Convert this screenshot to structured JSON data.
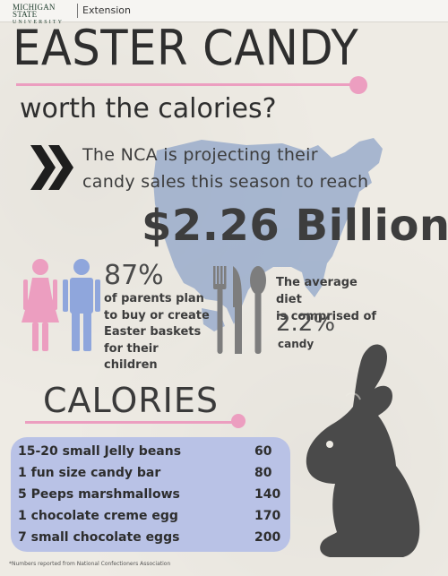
{
  "header": {
    "logo_line1": "MICHIGAN STATE",
    "logo_line2": "UNIVERSITY",
    "section": "Extension"
  },
  "title": "EASTER CANDY",
  "subtitle": "worth the calories?",
  "nca": {
    "line1": "The NCA is projecting their",
    "line2": "candy sales this season to reach",
    "amount": "$2.26 Billion"
  },
  "parents": {
    "percent": "87%",
    "text_lines": [
      "of parents plan",
      "to buy or create",
      "Easter baskets",
      "for their children"
    ]
  },
  "diet": {
    "text_lines": [
      "The average diet",
      "is comprised of"
    ],
    "percent": "2.2%",
    "label": "candy"
  },
  "calories": {
    "heading": "CALORIES",
    "rows": [
      {
        "item": "15-20 small Jelly beans",
        "value": "60"
      },
      {
        "item": "1 fun size candy bar",
        "value": "80"
      },
      {
        "item": "5 Peeps marshmallows",
        "value": "140"
      },
      {
        "item": "1 chocolate creme egg",
        "value": "170"
      },
      {
        "item": "7 small chocolate eggs",
        "value": "200"
      }
    ]
  },
  "footnote": "*Numbers reported from National Confectioners Association",
  "colors": {
    "pink": "#ec9ec0",
    "blue": "#8fa6dc",
    "map": "#8fa4c8",
    "box": "#b9c2e6",
    "dark": "#3a3a3a"
  },
  "icons": [
    "chevron-icon",
    "woman-icon",
    "man-icon",
    "fork-icon",
    "knife-icon",
    "spoon-icon",
    "bunny-silhouette",
    "usa-map"
  ]
}
